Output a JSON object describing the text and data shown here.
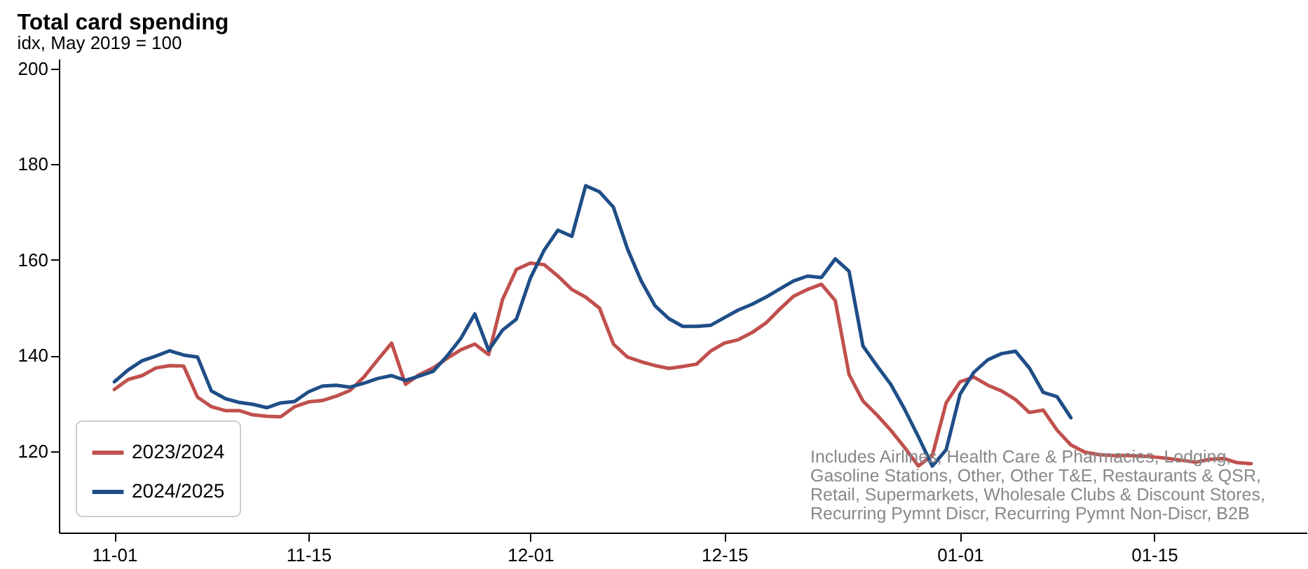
{
  "chart_data": {
    "type": "line",
    "title": "Total card spending",
    "subtitle": "idx, May 2019 = 100",
    "annotations": [
      "Includes Airlines, Health Care & Pharmacies, Lodging, Gasoline Stations, Other, Other T&E, Restaurants & QSR, Retail, Supermarkets, Wholesale Clubs & Discount Stores, Recurring Pymnt Discr, Recurring Pymnt Non-Discr, B2B"
    ],
    "x": [
      "2024-11-01",
      "2024-11-02",
      "2024-11-03",
      "2024-11-04",
      "2024-11-05",
      "2024-11-06",
      "2024-11-07",
      "2024-11-08",
      "2024-11-09",
      "2024-11-10",
      "2024-11-11",
      "2024-11-12",
      "2024-11-13",
      "2024-11-14",
      "2024-11-15",
      "2024-11-16",
      "2024-11-17",
      "2024-11-18",
      "2024-11-19",
      "2024-11-20",
      "2024-11-21",
      "2024-11-22",
      "2024-11-23",
      "2024-11-24",
      "2024-11-25",
      "2024-11-26",
      "2024-11-27",
      "2024-11-28",
      "2024-11-29",
      "2024-11-30",
      "2024-12-01",
      "2024-12-02",
      "2024-12-03",
      "2024-12-04",
      "2024-12-05",
      "2024-12-06",
      "2024-12-07",
      "2024-12-08",
      "2024-12-09",
      "2024-12-10",
      "2024-12-11",
      "2024-12-12",
      "2024-12-13",
      "2024-12-14",
      "2024-12-15",
      "2024-12-16",
      "2024-12-17",
      "2024-12-18",
      "2024-12-19",
      "2024-12-20",
      "2024-12-21",
      "2024-12-22",
      "2024-12-23",
      "2024-12-24",
      "2024-12-25",
      "2024-12-26",
      "2024-12-27",
      "2024-12-28",
      "2024-12-29",
      "2024-12-30",
      "2024-12-31",
      "2025-01-01",
      "2025-01-02",
      "2025-01-03",
      "2025-01-04",
      "2025-01-05",
      "2025-01-06",
      "2025-01-07",
      "2025-01-08",
      "2025-01-09",
      "2025-01-10",
      "2025-01-11",
      "2025-01-12",
      "2025-01-13",
      "2025-01-14",
      "2025-01-15",
      "2025-01-16",
      "2025-01-17",
      "2025-01-18",
      "2025-01-19",
      "2025-01-20",
      "2025-01-21",
      "2025-01-22"
    ],
    "series": [
      {
        "name": "2023/2024",
        "color": "#c0504d",
        "values": [
          132.9,
          135.0,
          135.8,
          137.4,
          137.9,
          137.8,
          131.3,
          129.3,
          128.5,
          128.5,
          127.6,
          127.3,
          127.2,
          129.3,
          130.3,
          130.6,
          131.5,
          132.7,
          135.5,
          139.1,
          142.6,
          134.0,
          136.0,
          137.4,
          139.4,
          141.2,
          142.4,
          140.2,
          151.7,
          158.0,
          159.3,
          159.0,
          156.6,
          153.8,
          152.2,
          149.9,
          142.4,
          139.7,
          138.7,
          137.9,
          137.3,
          137.7,
          138.2,
          140.9,
          142.6,
          143.3,
          144.8,
          146.8,
          149.7,
          152.4,
          153.8,
          154.9,
          151.5,
          136.0,
          130.5,
          127.6,
          124.4,
          120.8,
          116.9,
          119.1,
          130.1,
          134.5,
          135.5,
          133.8,
          132.6,
          130.8,
          128.1,
          128.6,
          124.4,
          121.3,
          119.8,
          119.3,
          119.1,
          119.1,
          119.0,
          118.8,
          118.5,
          118.1,
          117.7,
          118.3,
          118.5,
          117.6,
          117.4
        ]
      },
      {
        "name": "2024/2025",
        "color": "#1f4e87",
        "values": [
          134.5,
          137.0,
          138.9,
          139.9,
          141.0,
          140.1,
          139.7,
          132.6,
          131.0,
          130.2,
          129.8,
          129.1,
          130.1,
          130.4,
          132.4,
          133.6,
          133.8,
          133.4,
          134.2,
          135.2,
          135.8,
          134.8,
          135.7,
          136.7,
          139.9,
          143.6,
          148.7,
          141.1,
          145.3,
          147.6,
          156.1,
          162.0,
          166.2,
          164.9,
          175.5,
          174.2,
          171.0,
          162.4,
          155.6,
          150.4,
          147.7,
          146.1,
          146.1,
          146.3,
          147.9,
          149.5,
          150.7,
          152.2,
          153.9,
          155.6,
          156.6,
          156.3,
          160.2,
          157.6,
          142.0,
          137.9,
          134.0,
          128.8,
          123.0,
          116.9,
          120.3,
          131.9,
          136.5,
          139.1,
          140.4,
          140.9,
          137.4,
          132.3,
          131.4,
          127.0,
          null,
          null,
          null,
          null,
          null,
          null,
          null,
          null,
          null,
          null,
          null,
          null,
          null
        ]
      }
    ],
    "xlim": [
      "2024-10-28",
      "2025-01-26"
    ],
    "xticks": [
      {
        "value": "2024-11-01",
        "label": "11-01"
      },
      {
        "value": "2024-11-15",
        "label": "11-15"
      },
      {
        "value": "2024-12-01",
        "label": "12-01"
      },
      {
        "value": "2024-12-15",
        "label": "12-15"
      },
      {
        "value": "2025-01-01",
        "label": "01-01"
      },
      {
        "value": "2025-01-15",
        "label": "01-15"
      }
    ],
    "ylim": [
      103,
      202
    ],
    "yticks": [
      120,
      140,
      160,
      180,
      200
    ],
    "legend": "bottom left",
    "grid": false,
    "marker": "none",
    "line_style": "solid"
  }
}
